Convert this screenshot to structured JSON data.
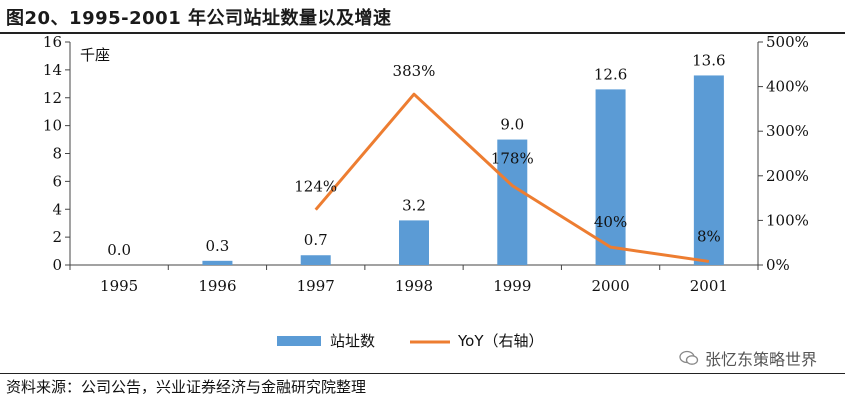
{
  "figure": {
    "title": "图20、1995-2001 年公司站址数量以及增速",
    "source": "资料来源：公司公告，兴业证券经济与金融研究院整理",
    "watermark": "张忆东策略世界"
  },
  "chart_data": {
    "type": "bar",
    "categories": [
      "1995",
      "1996",
      "1997",
      "1998",
      "1999",
      "2000",
      "2001"
    ],
    "series": [
      {
        "name": "站址数",
        "type": "bar",
        "axis": "left",
        "values": [
          0.0,
          0.3,
          0.7,
          3.2,
          9.0,
          12.6,
          13.6
        ],
        "labels": [
          "0.0",
          "0.3",
          "0.7",
          "3.2",
          "9.0",
          "12.6",
          "13.6"
        ],
        "color": "#5B9BD5"
      },
      {
        "name": "YoY（右轴）",
        "type": "line",
        "axis": "right",
        "values": [
          null,
          null,
          124,
          383,
          178,
          40,
          8
        ],
        "labels": [
          "",
          "",
          "124%",
          "383%",
          "178%",
          "40%",
          "8%"
        ],
        "color": "#ED7D31"
      }
    ],
    "y_left": {
      "unit_label": "千座",
      "ylim": [
        0,
        16
      ],
      "ticks": [
        "0",
        "2",
        "4",
        "6",
        "8",
        "10",
        "12",
        "14",
        "16"
      ],
      "tick_values": [
        0,
        2,
        4,
        6,
        8,
        10,
        12,
        14,
        16
      ]
    },
    "y_right": {
      "ylim": [
        0,
        500
      ],
      "ticks": [
        "0%",
        "100%",
        "200%",
        "300%",
        "400%",
        "500%"
      ],
      "tick_values": [
        0,
        100,
        200,
        300,
        400,
        500
      ]
    },
    "legend": {
      "position": "bottom-center",
      "items": [
        "站址数",
        "YoY（右轴）"
      ]
    },
    "grid": false
  }
}
